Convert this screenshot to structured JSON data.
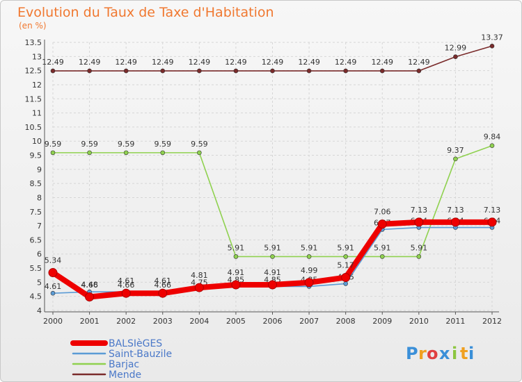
{
  "chart_data": {
    "type": "line",
    "title": "Evolution du Taux de Taxe d'Habitation",
    "subtitle": "(en %)",
    "xlabel": "",
    "ylabel": "",
    "ylim": [
      4,
      13.5
    ],
    "x": [
      "2000",
      "2001",
      "2002",
      "2003",
      "2004",
      "2005",
      "2006",
      "2007",
      "2008",
      "2009",
      "2010",
      "2011",
      "2012"
    ],
    "y_ticks": [
      "4",
      "4.5",
      "5",
      "5.5",
      "6",
      "6.5",
      "7",
      "7.5",
      "8",
      "8.5",
      "9",
      "9.5",
      "10",
      "10.5",
      "11",
      "11.5",
      "12",
      "12.5",
      "13",
      "13.5"
    ],
    "series": [
      {
        "name": "BALSIèGES",
        "color": "#ee0000",
        "values": [
          5.34,
          4.48,
          4.61,
          4.61,
          4.81,
          4.91,
          4.91,
          4.99,
          5.17,
          7.06,
          7.13,
          7.13,
          7.13
        ],
        "labels": [
          "5.34",
          "4.48",
          "4.61",
          "4.61",
          "4.81",
          "4.91",
          "4.91",
          "4.99",
          "5.17",
          "7.06",
          "7.13",
          "7.13",
          "7.13"
        ]
      },
      {
        "name": "Saint-Bauzile",
        "color": "#5b9bd5",
        "values": [
          4.61,
          4.66,
          4.66,
          4.66,
          4.75,
          4.85,
          4.85,
          4.85,
          4.95,
          6.87,
          6.94,
          6.94,
          6.94
        ],
        "labels": [
          "4.61",
          "4.66",
          "4.66",
          "4.66",
          "4.75",
          "4.85",
          "4.85",
          "4.85",
          "4.95",
          "6.87",
          "6.94",
          "6.94",
          "6.94"
        ]
      },
      {
        "name": "Barjac",
        "color": "#8fd14f",
        "values": [
          9.59,
          9.59,
          9.59,
          9.59,
          9.59,
          5.91,
          5.91,
          5.91,
          5.91,
          5.91,
          5.91,
          9.37,
          9.84
        ],
        "labels": [
          "9.59",
          "9.59",
          "9.59",
          "9.59",
          "9.59",
          "5.91",
          "5.91",
          "5.91",
          "5.91",
          "5.91",
          "5.91",
          "9.37",
          "9.84"
        ]
      },
      {
        "name": "Mende",
        "color": "#7a2b2b",
        "values": [
          12.49,
          12.49,
          12.49,
          12.49,
          12.49,
          12.49,
          12.49,
          12.49,
          12.49,
          12.49,
          12.49,
          12.99,
          13.37
        ],
        "labels": [
          "12.49",
          "12.49",
          "12.49",
          "12.49",
          "12.49",
          "12.49",
          "12.49",
          "12.49",
          "12.49",
          "12.49",
          "12.49",
          "12.99",
          "13.37"
        ]
      }
    ],
    "legend_position": "bottom-left"
  },
  "logo": {
    "letters": [
      "P",
      "r",
      "o",
      "x",
      "i",
      "t",
      "i"
    ],
    "colors": [
      "#3a8fd8",
      "#f0a020",
      "#e04040",
      "#3a8fd8",
      "#8cc63f",
      "#f0a020",
      "#3a8fd8"
    ]
  }
}
